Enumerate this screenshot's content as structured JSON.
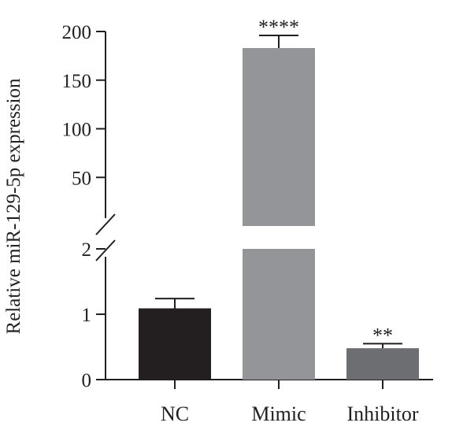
{
  "chart_data": {
    "type": "bar",
    "ylabel": "Relative miR-129-5p expression",
    "xlabel": "",
    "title": "",
    "categories": [
      "NC",
      "Mimic",
      "Inhibitor"
    ],
    "values": [
      1.09,
      183,
      0.48
    ],
    "errors": [
      0.15,
      13,
      0.07
    ],
    "significance": [
      "",
      "****",
      "**"
    ],
    "bar_colors": [
      "#231f20",
      "#939598",
      "#6d6e71"
    ],
    "axis_break": {
      "lower_range": [
        0,
        2
      ],
      "upper_range": [
        0,
        200
      ]
    },
    "lower_ticks": [
      0,
      1,
      2
    ],
    "upper_ticks": [
      50,
      100,
      150,
      200
    ],
    "grid": false,
    "legend": "none"
  }
}
